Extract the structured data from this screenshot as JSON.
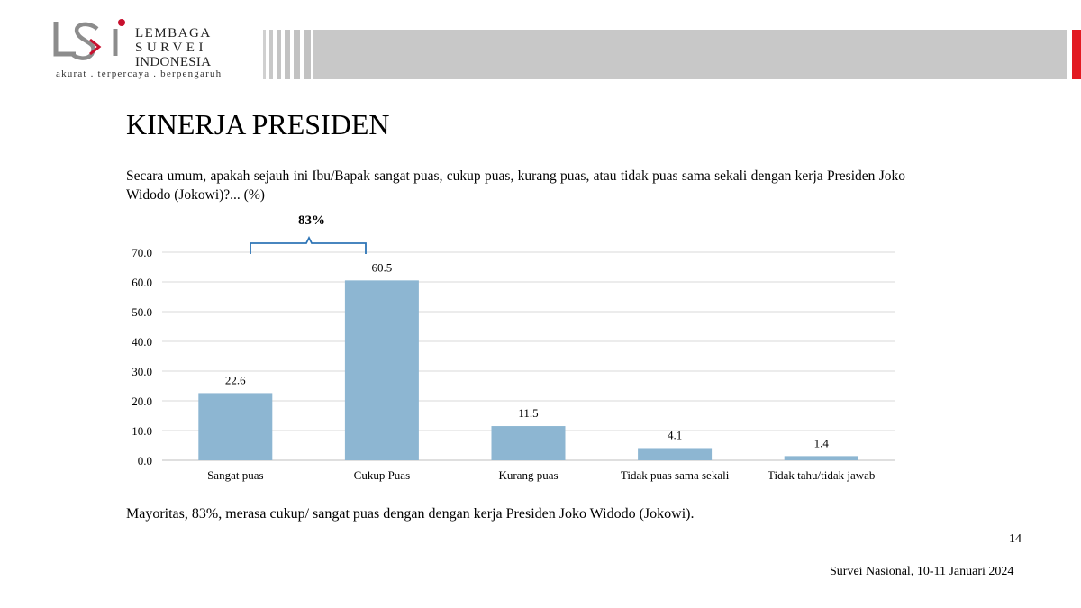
{
  "logo": {
    "line1": "LEMBAGA",
    "line2": "SURVEI",
    "line3": "INDONESIA",
    "tagline": "akurat . terpercaya . berpengaruh",
    "brand_red": "#c8102e",
    "brand_gray": "#8c8c8c"
  },
  "header": {
    "accent_color": "#e21a22"
  },
  "page_title": "KINERJA PRESIDEN",
  "question": "Secara umum, apakah sejauh ini Ibu/Bapak sangat puas, cukup puas, kurang puas, atau tidak puas sama sekali dengan kerja Presiden Joko Widodo (Jokowi)?... (%)",
  "chart_data": {
    "type": "bar",
    "categories": [
      "Sangat puas",
      "Cukup Puas",
      "Kurang puas",
      "Tidak puas sama sekali",
      "Tidak tahu/tidak jawab"
    ],
    "values": [
      22.6,
      60.5,
      11.5,
      4.1,
      1.4
    ],
    "value_labels": [
      "22.6",
      "60.5",
      "11.5",
      "4.1",
      "1.4"
    ],
    "ylim": [
      0,
      70
    ],
    "yticks": [
      "0.0",
      "10.0",
      "20.0",
      "30.0",
      "40.0",
      "50.0",
      "60.0",
      "70.0"
    ],
    "grid": true,
    "bar_color": "#8db6d2",
    "annotation": "83%"
  },
  "summary": "Mayoritas, 83%, merasa cukup/ sangat puas dengan dengan kerja Presiden Joko Widodo (Jokowi).",
  "page_number": "14",
  "footer_note": "Survei Nasional, 10-11 Januari 2024"
}
